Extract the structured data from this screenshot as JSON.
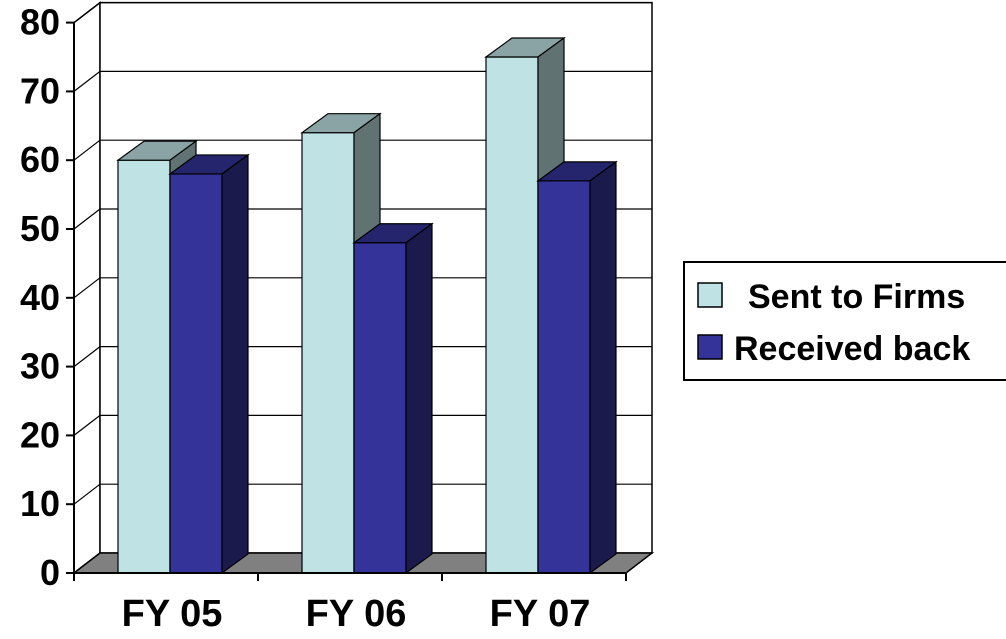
{
  "chart_data": {
    "type": "bar",
    "style": "3d-clustered-column",
    "categories": [
      "FY 05",
      "FY 06",
      "FY 07"
    ],
    "series": [
      {
        "name": "Sent to Firms",
        "values": [
          60,
          64,
          75
        ],
        "color": "#bfe3e4"
      },
      {
        "name": "Received back",
        "values": [
          58,
          48,
          57
        ],
        "color": "#333399"
      }
    ],
    "y_ticks": [
      "0",
      "10",
      "20",
      "30",
      "40",
      "50",
      "60",
      "70",
      "80"
    ],
    "ylim": [
      0,
      80
    ],
    "y_step": 10,
    "title": "",
    "xlabel": "",
    "ylabel": "",
    "grid": true,
    "legend_position": "right",
    "colors": {
      "floor": "#808080",
      "gridline": "#000000",
      "axis": "#000000"
    }
  }
}
